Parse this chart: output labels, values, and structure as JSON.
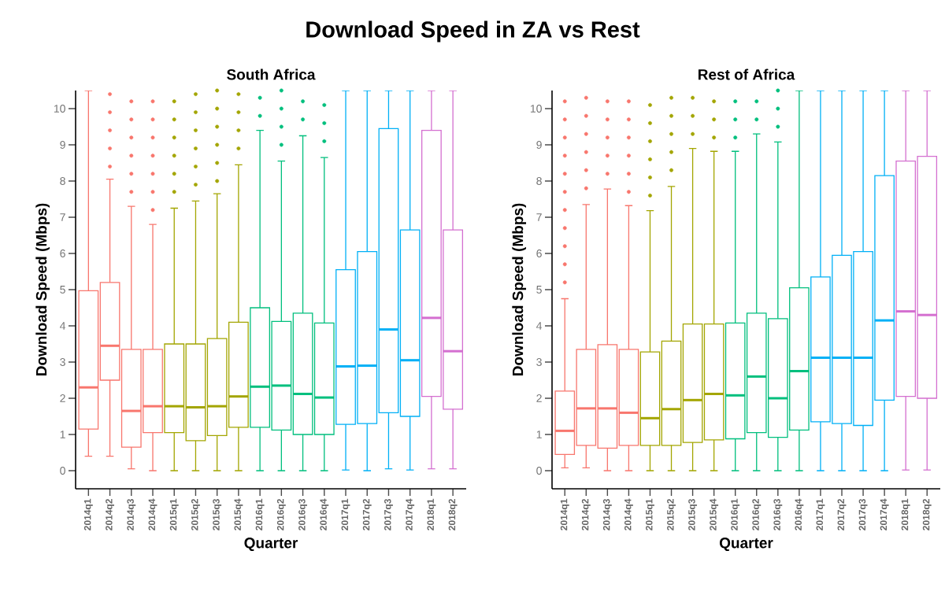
{
  "chart_data": [
    {
      "type": "box",
      "title": "South Africa",
      "annotations": [
        "Download Speed in ZA vs Rest"
      ],
      "xlabel": "Quarter",
      "ylabel": "Download Speed (Mbps)",
      "categories": [
        "2014q1",
        "2014q2",
        "2014q3",
        "2014q4",
        "2015q1",
        "2015q2",
        "2015q3",
        "2015q4",
        "2016q1",
        "2016q2",
        "2016q3",
        "2016q4",
        "2017q1",
        "2017q2",
        "2017q3",
        "2017q4",
        "2018q1",
        "2018q2"
      ],
      "colors": [
        "#f8766d",
        "#f8766d",
        "#f8766d",
        "#f8766d",
        "#a3a500",
        "#a3a500",
        "#a3a500",
        "#a3a500",
        "#00bf7d",
        "#00bf7d",
        "#00bf7d",
        "#00bf7d",
        "#00b0f6",
        "#00b0f6",
        "#00b0f6",
        "#00b0f6",
        "#d46fd0",
        "#d46fd0"
      ],
      "boxes": [
        {
          "low": 0.4,
          "q1": 1.15,
          "median": 2.3,
          "q3": 4.97,
          "high": 10.5
        },
        {
          "low": 0.4,
          "q1": 2.5,
          "median": 3.45,
          "q3": 5.2,
          "high": 8.05,
          "outliers": [
            8.4,
            8.9,
            9.4,
            9.9,
            10.4
          ]
        },
        {
          "low": 0.05,
          "q1": 0.65,
          "median": 1.65,
          "q3": 3.35,
          "high": 7.3,
          "outliers": [
            7.7,
            8.2,
            8.7,
            9.2,
            9.7,
            10.2
          ]
        },
        {
          "low": 0,
          "q1": 1.05,
          "median": 1.78,
          "q3": 3.35,
          "high": 6.8,
          "outliers": [
            7.2,
            7.7,
            8.2,
            8.7,
            9.2,
            9.7,
            10.2
          ]
        },
        {
          "low": 0,
          "q1": 1.05,
          "median": 1.78,
          "q3": 3.5,
          "high": 7.25,
          "outliers": [
            7.7,
            8.2,
            8.7,
            9.2,
            9.7,
            10.2
          ]
        },
        {
          "low": 0,
          "q1": 0.83,
          "median": 1.75,
          "q3": 3.5,
          "high": 7.45,
          "outliers": [
            7.9,
            8.4,
            8.9,
            9.4,
            9.9,
            10.4
          ]
        },
        {
          "low": 0,
          "q1": 0.97,
          "median": 1.78,
          "q3": 3.65,
          "high": 7.65,
          "outliers": [
            8.0,
            8.5,
            9.0,
            9.5,
            10.0,
            10.5
          ]
        },
        {
          "low": 0,
          "q1": 1.2,
          "median": 2.05,
          "q3": 4.1,
          "high": 8.45,
          "outliers": [
            8.9,
            9.4,
            9.9,
            10.4
          ]
        },
        {
          "low": 0,
          "q1": 1.2,
          "median": 2.32,
          "q3": 4.5,
          "high": 9.4,
          "outliers": [
            9.8,
            10.3
          ]
        },
        {
          "low": 0,
          "q1": 1.12,
          "median": 2.35,
          "q3": 4.12,
          "high": 8.55,
          "outliers": [
            9.0,
            9.5,
            10.0,
            10.5
          ]
        },
        {
          "low": 0,
          "q1": 1.0,
          "median": 2.12,
          "q3": 4.35,
          "high": 9.25,
          "outliers": [
            9.7,
            10.2
          ]
        },
        {
          "low": 0,
          "q1": 1.0,
          "median": 2.02,
          "q3": 4.08,
          "high": 8.65,
          "outliers": [
            9.1,
            9.6,
            10.1
          ]
        },
        {
          "low": 0.02,
          "q1": 1.28,
          "median": 2.88,
          "q3": 5.55,
          "high": 10.5
        },
        {
          "low": 0,
          "q1": 1.3,
          "median": 2.9,
          "q3": 6.05,
          "high": 10.5
        },
        {
          "low": 0.05,
          "q1": 1.6,
          "median": 3.9,
          "q3": 9.45,
          "high": 10.5
        },
        {
          "low": 0.02,
          "q1": 1.5,
          "median": 3.05,
          "q3": 6.65,
          "high": 10.5
        },
        {
          "low": 0.05,
          "q1": 2.05,
          "median": 4.22,
          "q3": 9.4,
          "high": 10.5
        },
        {
          "low": 0.05,
          "q1": 1.7,
          "median": 3.3,
          "q3": 6.65,
          "high": 10.5
        }
      ],
      "ylim": [
        -0.5,
        10.5
      ],
      "yticks": [
        0,
        1,
        2,
        3,
        4,
        5,
        6,
        7,
        8,
        9,
        10
      ]
    },
    {
      "type": "box",
      "title": "Rest of Africa",
      "xlabel": "Quarter",
      "ylabel": "Download Speed (Mbps)",
      "categories": [
        "2014q1",
        "2014q2",
        "2014q3",
        "2014q4",
        "2015q1",
        "2015q2",
        "2015q3",
        "2015q4",
        "2016q1",
        "2016q2",
        "2016q3",
        "2016q4",
        "2017q1",
        "2017q2",
        "2017q3",
        "2017q4",
        "2018q1",
        "2018q2"
      ],
      "colors": [
        "#f8766d",
        "#f8766d",
        "#f8766d",
        "#f8766d",
        "#a3a500",
        "#a3a500",
        "#a3a500",
        "#a3a500",
        "#00bf7d",
        "#00bf7d",
        "#00bf7d",
        "#00bf7d",
        "#00b0f6",
        "#00b0f6",
        "#00b0f6",
        "#00b0f6",
        "#d46fd0",
        "#d46fd0"
      ],
      "boxes": [
        {
          "low": 0.08,
          "q1": 0.45,
          "median": 1.1,
          "q3": 2.2,
          "high": 4.75,
          "outliers": [
            5.2,
            5.7,
            6.2,
            6.7,
            7.2,
            7.7,
            8.2,
            8.7,
            9.2,
            9.7,
            10.2
          ]
        },
        {
          "low": 0.08,
          "q1": 0.7,
          "median": 1.72,
          "q3": 3.35,
          "high": 7.35,
          "outliers": [
            7.8,
            8.3,
            8.8,
            9.3,
            9.8,
            10.3
          ]
        },
        {
          "low": 0,
          "q1": 0.62,
          "median": 1.72,
          "q3": 3.48,
          "high": 7.78,
          "outliers": [
            8.2,
            8.7,
            9.2,
            9.7,
            10.2
          ]
        },
        {
          "low": 0,
          "q1": 0.7,
          "median": 1.6,
          "q3": 3.35,
          "high": 7.32,
          "outliers": [
            7.7,
            8.2,
            8.7,
            9.2,
            9.7,
            10.2
          ]
        },
        {
          "low": 0,
          "q1": 0.7,
          "median": 1.45,
          "q3": 3.28,
          "high": 7.18,
          "outliers": [
            7.6,
            8.1,
            8.6,
            9.1,
            9.6,
            10.1
          ]
        },
        {
          "low": 0,
          "q1": 0.7,
          "median": 1.7,
          "q3": 3.58,
          "high": 7.85,
          "outliers": [
            8.3,
            8.8,
            9.3,
            9.8,
            10.3
          ]
        },
        {
          "low": 0,
          "q1": 0.78,
          "median": 1.95,
          "q3": 4.05,
          "high": 8.9,
          "outliers": [
            9.3,
            9.8,
            10.3
          ]
        },
        {
          "low": 0,
          "q1": 0.85,
          "median": 2.12,
          "q3": 4.05,
          "high": 8.82,
          "outliers": [
            9.2,
            9.7,
            10.2
          ]
        },
        {
          "low": 0,
          "q1": 0.88,
          "median": 2.08,
          "q3": 4.08,
          "high": 8.82,
          "outliers": [
            9.2,
            9.7,
            10.2
          ]
        },
        {
          "low": 0,
          "q1": 1.05,
          "median": 2.6,
          "q3": 4.35,
          "high": 9.3,
          "outliers": [
            9.7,
            10.2
          ]
        },
        {
          "low": 0,
          "q1": 0.92,
          "median": 2.0,
          "q3": 4.2,
          "high": 9.08,
          "outliers": [
            9.5,
            10.0,
            10.5
          ]
        },
        {
          "low": 0,
          "q1": 1.12,
          "median": 2.75,
          "q3": 5.05,
          "high": 10.5
        },
        {
          "low": 0,
          "q1": 1.35,
          "median": 3.12,
          "q3": 5.35,
          "high": 10.5
        },
        {
          "low": 0,
          "q1": 1.3,
          "median": 3.12,
          "q3": 5.95,
          "high": 10.5
        },
        {
          "low": 0,
          "q1": 1.25,
          "median": 3.12,
          "q3": 6.05,
          "high": 10.5
        },
        {
          "low": 0,
          "q1": 1.95,
          "median": 4.15,
          "q3": 8.15,
          "high": 10.5
        },
        {
          "low": 0.02,
          "q1": 2.05,
          "median": 4.4,
          "q3": 8.55,
          "high": 10.5
        },
        {
          "low": 0.02,
          "q1": 2.0,
          "median": 4.3,
          "q3": 8.68,
          "high": 10.5
        }
      ],
      "ylim": [
        -0.5,
        10.5
      ],
      "yticks": [
        0,
        1,
        2,
        3,
        4,
        5,
        6,
        7,
        8,
        9,
        10
      ]
    }
  ]
}
